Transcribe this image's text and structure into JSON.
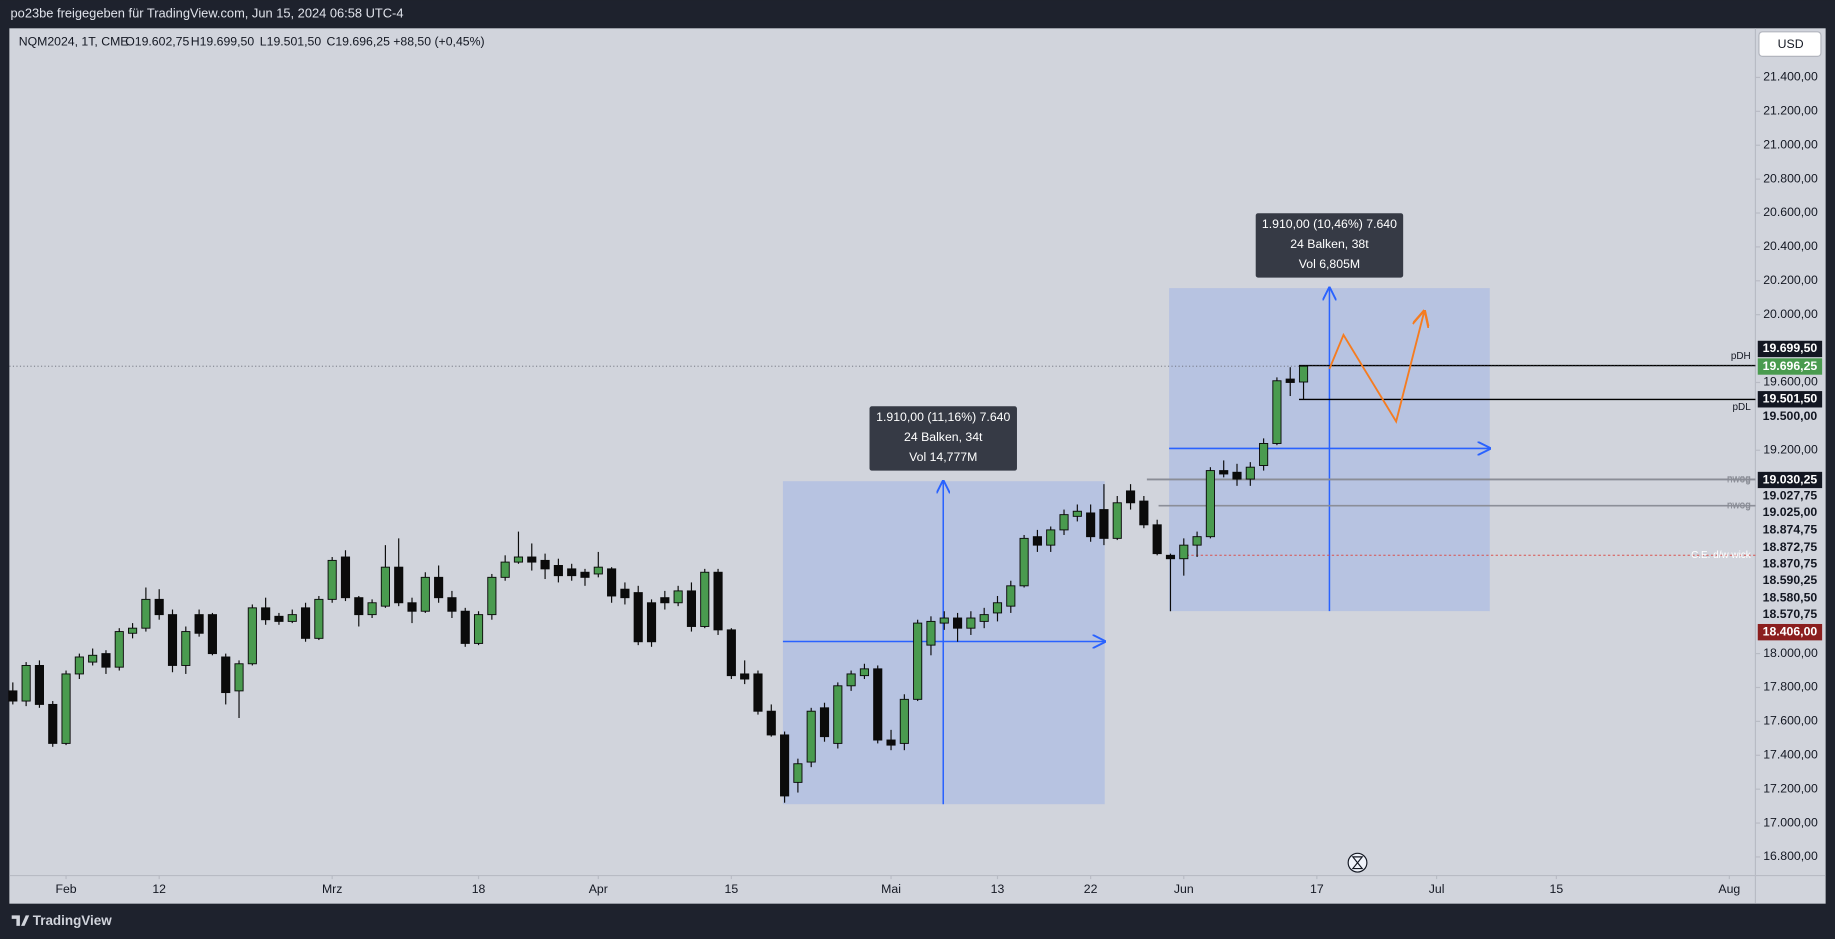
{
  "header": "po23be freigegeben für TradingView.com, Jun 15, 2024 06:58 UTC-4",
  "footer": "TradingView",
  "currency_button": "USD",
  "chart_data": {
    "type": "candlestick",
    "symbol": "NQM2024, 1T, CME",
    "ohlc_text": [
      "O19.602,75",
      "H19.699,50",
      "L19.501,50",
      "C19.696,25",
      "+88,50 (+0,45%)"
    ],
    "up_color": "#4a9b4f",
    "down_color": "#0b0b0b",
    "grid": false,
    "xlim": [
      -0.26,
      130.96
    ],
    "ylim": [
      16690,
      21690
    ],
    "xticks": [
      {
        "value": 4,
        "label": "Feb"
      },
      {
        "value": 11,
        "label": "12"
      },
      {
        "value": 24,
        "label": "Mrz"
      },
      {
        "value": 35,
        "label": "18"
      },
      {
        "value": 44,
        "label": "Apr"
      },
      {
        "value": 54,
        "label": "15"
      },
      {
        "value": 66,
        "label": "Mai"
      },
      {
        "value": 74,
        "label": "13"
      },
      {
        "value": 81,
        "label": "22"
      },
      {
        "value": 88,
        "label": "Jun"
      },
      {
        "value": 98,
        "label": "17"
      },
      {
        "value": 107,
        "label": "Jul"
      },
      {
        "value": 116,
        "label": "15"
      },
      {
        "value": 129,
        "label": "Aug"
      }
    ],
    "yticks": [
      {
        "value": 21400,
        "label": "21.400,00"
      },
      {
        "value": 21200,
        "label": "21.200,00"
      },
      {
        "value": 21000,
        "label": "21.000,00"
      },
      {
        "value": 20800,
        "label": "20.800,00"
      },
      {
        "value": 20600,
        "label": "20.600,00"
      },
      {
        "value": 20400,
        "label": "20.400,00"
      },
      {
        "value": 20200,
        "label": "20.200,00"
      },
      {
        "value": 20000,
        "label": "20.000,00"
      },
      {
        "value": 19600,
        "label": "19.600,00"
      },
      {
        "value": 19200,
        "label": "19.200,00"
      },
      {
        "value": 18000,
        "label": "18.000,00"
      },
      {
        "value": 17800,
        "label": "17.800,00"
      },
      {
        "value": 17600,
        "label": "17.600,00"
      },
      {
        "value": 17400,
        "label": "17.400,00"
      },
      {
        "value": 17200,
        "label": "17.200,00"
      },
      {
        "value": 17000,
        "label": "17.000,00"
      },
      {
        "value": 16800,
        "label": "16.800,00"
      }
    ],
    "open": [
      17780,
      17720,
      17930,
      17700,
      17470,
      17880,
      17950,
      18000,
      17920,
      18120,
      18150,
      18320,
      18230,
      17930,
      18230,
      18230,
      17980,
      17780,
      17940,
      18270,
      18220,
      18190,
      18270,
      18090,
      18320,
      18570,
      18330,
      18230,
      18280,
      18510,
      18300,
      18250,
      18450,
      18330,
      18250,
      18060,
      18230,
      18450,
      18540,
      18570,
      18550,
      18520,
      18500,
      18480,
      18470,
      18500,
      18380,
      18360,
      18300,
      18330,
      18300,
      18370,
      18160,
      18480,
      18140,
      17880,
      17880,
      17660,
      17520,
      17240,
      17360,
      17680,
      17470,
      17810,
      17870,
      17910,
      17490,
      17470,
      17730,
      18050,
      18180,
      18210,
      18150,
      18190,
      18240,
      18280,
      18400,
      18690,
      18640,
      18730,
      18810,
      18830,
      18850,
      18680,
      18960,
      18900,
      18760,
      18580,
      18560,
      18640,
      18690,
      19080,
      19070,
      19030,
      19110,
      19240,
      19620,
      19602.75
    ],
    "high": [
      17830,
      17950,
      17960,
      17720,
      17900,
      18000,
      18030,
      18020,
      18150,
      18180,
      18390,
      18380,
      18260,
      18160,
      18260,
      18240,
      18000,
      17960,
      18290,
      18330,
      18240,
      18260,
      18300,
      18340,
      18570,
      18610,
      18340,
      18320,
      18640,
      18680,
      18330,
      18480,
      18520,
      18370,
      18270,
      18250,
      18470,
      18580,
      18720,
      18650,
      18590,
      18560,
      18530,
      18500,
      18600,
      18510,
      18420,
      18400,
      18320,
      18370,
      18400,
      18420,
      18500,
      18500,
      18150,
      17960,
      17900,
      17700,
      17540,
      17380,
      17680,
      17710,
      17830,
      17900,
      17940,
      17930,
      17550,
      17760,
      18200,
      18220,
      18250,
      18240,
      18250,
      18270,
      18340,
      18430,
      18700,
      18730,
      18750,
      18850,
      18880,
      18880,
      19000,
      18930,
      19000,
      18930,
      18790,
      18590,
      18680,
      18720,
      19100,
      19140,
      19120,
      19130,
      19270,
      19630,
      19690,
      19699.5
    ],
    "low": [
      17700,
      17690,
      17680,
      17450,
      17460,
      17850,
      17930,
      17880,
      17900,
      18090,
      18130,
      18200,
      17890,
      17880,
      18100,
      17990,
      17700,
      17620,
      17930,
      18170,
      18170,
      18180,
      18070,
      18080,
      18300,
      18310,
      18160,
      18210,
      18270,
      18280,
      18180,
      18240,
      18300,
      18210,
      18040,
      18050,
      18200,
      18430,
      18530,
      18490,
      18440,
      18420,
      18430,
      18400,
      18450,
      18300,
      18290,
      18050,
      18040,
      18260,
      18280,
      18130,
      18150,
      18110,
      17850,
      17820,
      17640,
      17510,
      17120,
      17180,
      17330,
      17480,
      17440,
      17780,
      17850,
      17470,
      17430,
      17430,
      17720,
      17990,
      18140,
      18070,
      18110,
      18150,
      18190,
      18240,
      18390,
      18600,
      18600,
      18700,
      18780,
      18660,
      18640,
      18670,
      18850,
      18740,
      18580,
      18250,
      18460,
      18570,
      18680,
      19040,
      18990,
      18990,
      19080,
      19230,
      19520,
      19501.5
    ],
    "close": [
      17720,
      17930,
      17700,
      17470,
      17880,
      17980,
      17990,
      17920,
      18130,
      18150,
      18320,
      18230,
      17930,
      18130,
      18120,
      18000,
      17770,
      17940,
      18270,
      18200,
      18190,
      18230,
      18090,
      18320,
      18550,
      18330,
      18230,
      18300,
      18510,
      18300,
      18250,
      18450,
      18330,
      18250,
      18060,
      18230,
      18450,
      18540,
      18570,
      18540,
      18500,
      18460,
      18460,
      18450,
      18510,
      18340,
      18330,
      18070,
      18070,
      18300,
      18370,
      18160,
      18480,
      18140,
      17870,
      17850,
      17660,
      17520,
      17160,
      17350,
      17660,
      17510,
      17810,
      17880,
      17910,
      17490,
      17460,
      17730,
      18180,
      18190,
      18210,
      18150,
      18210,
      18230,
      18300,
      18400,
      18680,
      18640,
      18730,
      18820,
      18840,
      18690,
      18680,
      18890,
      18890,
      18760,
      18590,
      18560,
      18640,
      18690,
      19080,
      19060,
      19030,
      19100,
      19240,
      19610,
      19600,
      19696.25
    ],
    "price_labels": [
      {
        "value": 19699.5,
        "label": "19.699,50",
        "color": "#131722",
        "text_color": "#ffffff"
      },
      {
        "value": 19696.25,
        "label": "19.696,25",
        "color": "#4a9b4f",
        "text_color": "#ffffff",
        "line": "dotted"
      },
      {
        "value": 19501.5,
        "label": "19.501,50",
        "color": "#131722",
        "text_color": "#ffffff"
      },
      {
        "value": 19500,
        "label": "19.500,00",
        "color": "#d1d4dc",
        "text_color": "#131722"
      },
      {
        "value": 19030.25,
        "label": "19.030,25",
        "color": "#131722",
        "text_color": "#ffffff"
      },
      {
        "value": 19027.75,
        "label": "19.027,75",
        "color": "#d1d4dc",
        "text_color": "#131722"
      },
      {
        "value": 19025,
        "label": "19.025,00",
        "color": "#d1d4dc",
        "text_color": "#131722"
      },
      {
        "value": 18874.75,
        "label": "18.874,75",
        "color": "#d1d4dc",
        "text_color": "#131722"
      },
      {
        "value": 18872.75,
        "label": "18.872,75",
        "color": "#d1d4dc",
        "text_color": "#131722"
      },
      {
        "value": 18870.75,
        "label": "18.870,75",
        "color": "#d1d4dc",
        "text_color": "#131722"
      },
      {
        "value": 18590.25,
        "label": "18.590,25",
        "color": "#d1d4dc",
        "text_color": "#131722"
      },
      {
        "value": 18580.5,
        "label": "18.580,50",
        "color": "#d1d4dc",
        "text_color": "#131722"
      },
      {
        "value": 18570.75,
        "label": "18.570,75",
        "color": "#d1d4dc",
        "text_color": "#131722"
      },
      {
        "value": 18406,
        "label": "18.406,00",
        "color": "#8b1e1e",
        "text_color": "#ffffff"
      }
    ],
    "line_notes": [
      {
        "text": "pDH",
        "value": 19699.5,
        "color": "#000000",
        "text_color": "#131722"
      },
      {
        "text": "pDL",
        "value": 19500,
        "color": "#000000",
        "text_color": "#131722"
      },
      {
        "text": "nwog",
        "value": 19030.25,
        "color": "#8a8d96",
        "text_color": "#8a8d96"
      },
      {
        "text": "nwog",
        "value": 19025,
        "color": "#8a8d96",
        "text_color": "#8a8d96"
      },
      {
        "text": "nwog",
        "value": 18874.75,
        "color": "#8a8d96",
        "text_color": "#8a8d96"
      },
      {
        "text": "nwog",
        "value": 18870.75,
        "color": "#8a8d96",
        "text_color": "#8a8d96"
      },
      {
        "text": "C.E. d/w wick",
        "value": 18580.5,
        "color": "#d9534f",
        "text_color": "#ffffff"
      }
    ],
    "measures": [
      {
        "lines": [
          "1.910,00 (11,16%) 7.640",
          "24 Balken, 34t",
          "Vol 14,777M"
        ]
      },
      {
        "lines": [
          "1.910,00 (10,46%) 7.640",
          "24 Balken, 38t",
          "Vol 6,805M"
        ]
      }
    ]
  }
}
